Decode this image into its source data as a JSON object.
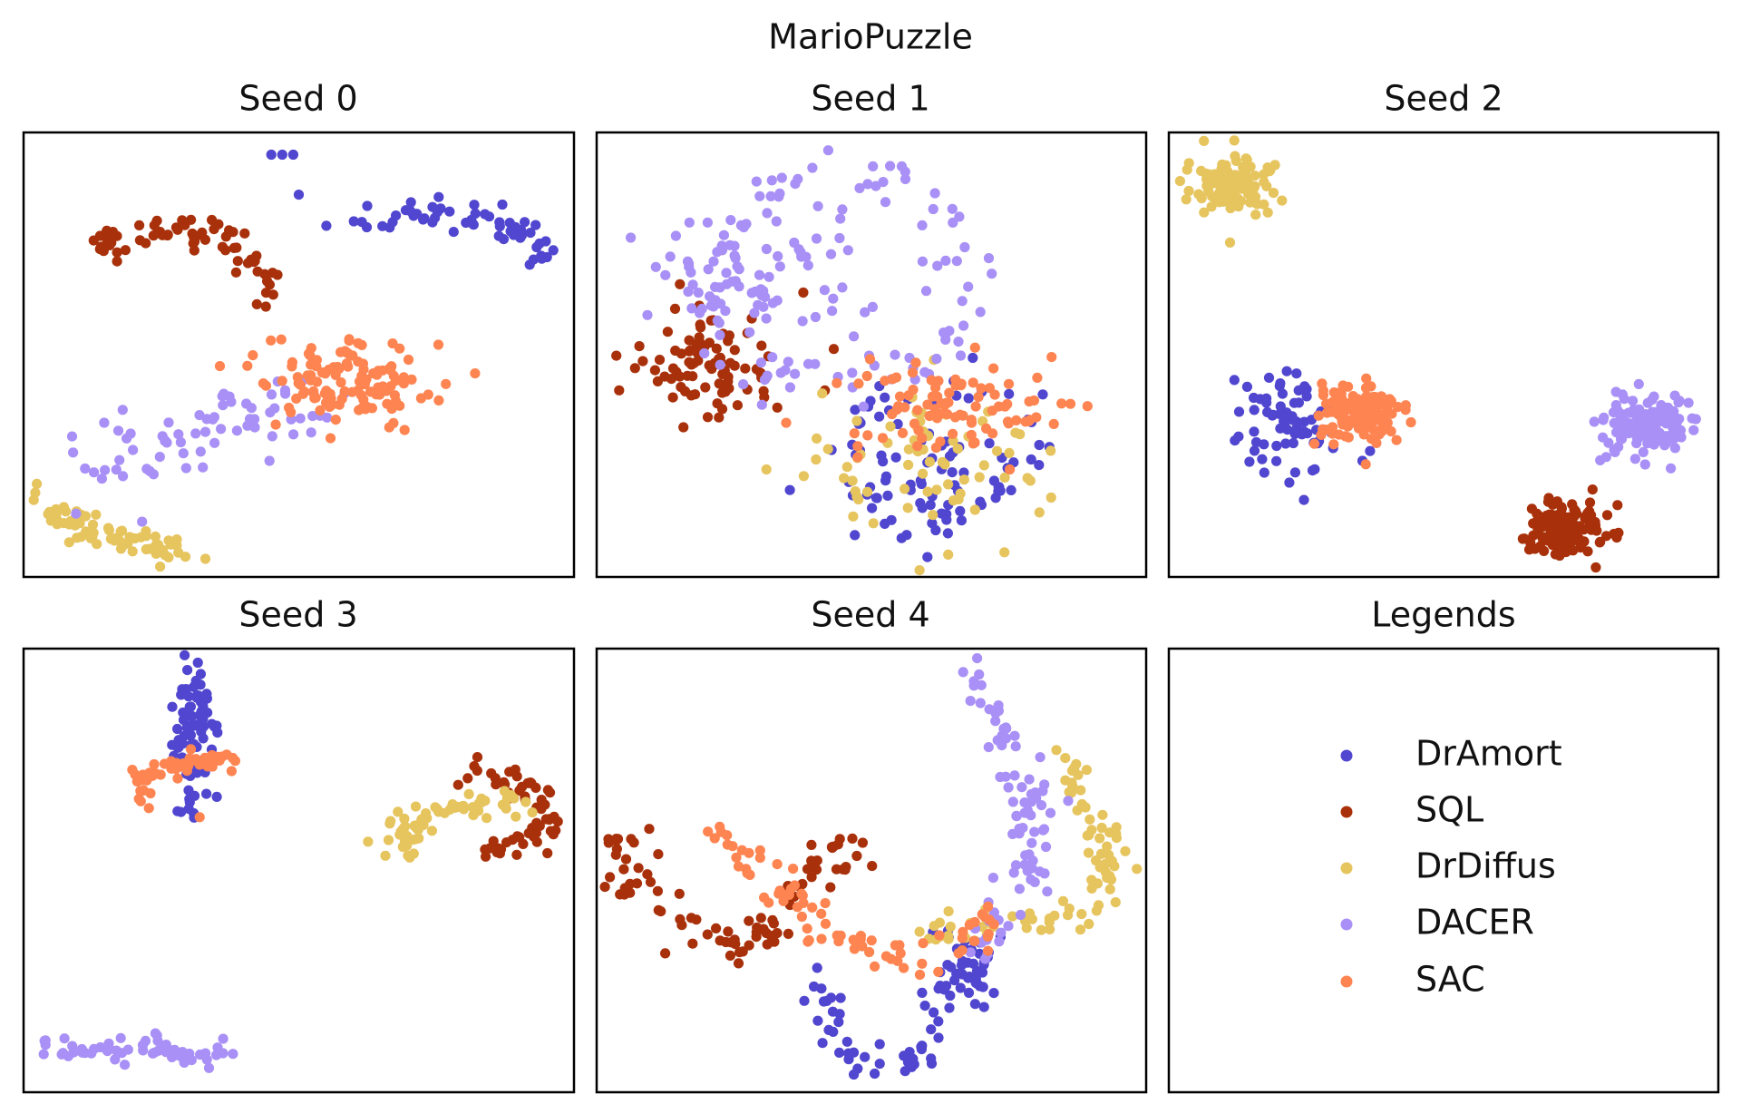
{
  "chart_data": {
    "type": "scatter",
    "title": "MarioPuzzle",
    "series_meta": [
      {
        "name": "DrAmort",
        "color": "#5046CF"
      },
      {
        "name": "SQL",
        "color": "#A8300A"
      },
      {
        "name": "DrDiffus",
        "color": "#E6C45E"
      },
      {
        "name": "DACER",
        "color": "#A890F6"
      },
      {
        "name": "SAC",
        "color": "#FE8451"
      }
    ],
    "legend": {
      "title": "Legends",
      "placement": "bottom-right panel"
    },
    "panels": [
      {
        "title": "Seed 0",
        "xlim": [
          0,
          100
        ],
        "ylim": [
          0,
          100
        ],
        "clusters": {
          "DrAmort": [
            {
              "pts": [
                [
                  45,
                  95
                ],
                [
                  47,
                  95
                ],
                [
                  49,
                  95
                ],
                [
                  50,
                  86
                ],
                [
                  55,
                  79
                ],
                [
                  60,
                  80
                ]
              ]
            },
            {
              "path": [
                [
                  62,
                  79
                ],
                [
                  70,
                  82
                ],
                [
                  78,
                  82
                ],
                [
                  86,
                  80
                ],
                [
                  92,
                  76
                ],
                [
                  95,
                  68
                ]
              ],
              "n": 55,
              "spread": 1.8
            }
          ],
          "SQL": [
            {
              "path": [
                [
                  13,
                  74
                ],
                [
                  22,
                  77
                ],
                [
                  32,
                  78
                ],
                [
                  40,
                  75
                ],
                [
                  44,
                  68
                ],
                [
                  45,
                  61
                ]
              ],
              "n": 70,
              "spread": 2.0
            }
          ],
          "SAC": [
            {
              "gauss": [
                58,
                44
              ],
              "sd": [
                9,
                4.5
              ],
              "n": 120
            }
          ],
          "DACER": [
            {
              "path": [
                [
                  14,
                  26
                ],
                [
                  24,
                  30
                ],
                [
                  34,
                  33
                ],
                [
                  44,
                  35
                ],
                [
                  54,
                  34
                ]
              ],
              "n": 70,
              "spread": 4.5
            }
          ],
          "DrDiffus": [
            {
              "path": [
                [
                  4,
                  18
                ],
                [
                  10,
                  11
                ],
                [
                  18,
                  8
                ],
                [
                  28,
                  6
                ]
              ],
              "n": 70,
              "spread": 1.8
            }
          ]
        }
      },
      {
        "title": "Seed 1",
        "xlim": [
          0,
          100
        ],
        "ylim": [
          0,
          100
        ],
        "clusters": {
          "DACER": [
            {
              "ring": [
                44,
                67
              ],
              "r": [
                22,
                24
              ],
              "n": 95,
              "jitter": 3
            },
            {
              "gauss": [
                30,
                68
              ],
              "sd": [
                10,
                9
              ],
              "n": 75
            }
          ],
          "SQL": [
            {
              "gauss": [
                21,
                47
              ],
              "sd": [
                7,
                6
              ],
              "n": 90
            }
          ],
          "DrAmort": [
            {
              "gauss": [
                62,
                23
              ],
              "sd": [
                8,
                6
              ],
              "n": 50
            },
            {
              "ring": [
                64,
                30
              ],
              "r": [
                16,
                14
              ],
              "n": 45,
              "jitter": 2.5
            }
          ],
          "DrDiffus": [
            {
              "gauss": [
                60,
                24
              ],
              "sd": [
                10,
                8
              ],
              "n": 70
            }
          ],
          "SAC": [
            {
              "gauss": [
                67,
                38
              ],
              "sd": [
                10,
                6
              ],
              "n": 90
            }
          ]
        }
      },
      {
        "title": "Seed 2",
        "xlim": [
          0,
          100
        ],
        "ylim": [
          0,
          100
        ],
        "clusters": {
          "DrDiffus": [
            {
              "gauss": [
                12,
                88
              ],
              "sd": [
                3.5,
                3.2
              ],
              "n": 120
            }
          ],
          "DrAmort": [
            {
              "gauss": [
                22,
                35
              ],
              "sd": [
                5,
                7
              ],
              "n": 75
            }
          ],
          "SAC": [
            {
              "gauss": [
                35,
                37
              ],
              "sd": [
                3.5,
                3.2
              ],
              "n": 130
            }
          ],
          "DACER": [
            {
              "gauss": [
                87,
                34
              ],
              "sd": [
                3.5,
                3.5
              ],
              "n": 150
            }
          ],
          "SQL": [
            {
              "gauss": [
                72,
                11
              ],
              "sd": [
                3.3,
                3.0
              ],
              "n": 140
            }
          ]
        }
      },
      {
        "title": "Seed 3",
        "xlim": [
          0,
          100
        ],
        "ylim": [
          0,
          100
        ],
        "clusters": {
          "DrAmort": [
            {
              "gauss": [
                31,
                81
              ],
              "sd": [
                2.2,
                8
              ],
              "n": 90
            }
          ],
          "SAC": [
            {
              "path": [
                [
                  21,
                  65
                ],
                [
                  22,
                  71
                ],
                [
                  28,
                  74
                ],
                [
                  34,
                  75
                ],
                [
                  37,
                  73
                ]
              ],
              "n": 55,
              "spread": 1.3
            },
            {
              "pts": [
                [
                  32,
                  62
                ]
              ]
            }
          ],
          "DrDiffus": [
            {
              "path": [
                [
                  67,
                  55
                ],
                [
                  74,
                  62
                ],
                [
                  82,
                  65
                ],
                [
                  90,
                  64
                ]
              ],
              "n": 65,
              "spread": 2.0
            }
          ],
          "SQL": [
            {
              "path": [
                [
                  83,
                  72
                ],
                [
                  90,
                  70
                ],
                [
                  95,
                  64
                ],
                [
                  92,
                  56
                ],
                [
                  84,
                  55
                ]
              ],
              "n": 60,
              "spread": 1.8
            }
          ],
          "DACER": [
            {
              "path": [
                [
                  4,
                  10
                ],
                [
                  15,
                  9
                ],
                [
                  25,
                  10
                ],
                [
                  32,
                  8
                ],
                [
                  40,
                  10
                ]
              ],
              "n": 60,
              "spread": 1.4
            }
          ]
        }
      },
      {
        "title": "Seed 4",
        "xlim": [
          0,
          100
        ],
        "ylim": [
          0,
          100
        ],
        "clusters": {
          "DACER": [
            {
              "path": [
                [
                  70,
                  95
                ],
                [
                  72,
                  85
                ],
                [
                  76,
                  77
                ],
                [
                  80,
                  68
                ],
                [
                  78,
                  58
                ],
                [
                  80,
                  48
                ],
                [
                  75,
                  40
                ],
                [
                  69,
                  32
                ]
              ],
              "n": 85,
              "spread": 2.3
            }
          ],
          "DrDiffus": [
            {
              "path": [
                [
                  86,
                  73
                ],
                [
                  90,
                  64
                ],
                [
                  94,
                  54
                ],
                [
                  91,
                  44
                ],
                [
                  85,
                  38
                ],
                [
                  76,
                  38
                ],
                [
                  66,
                  37
                ],
                [
                  60,
                  36
                ]
              ],
              "n": 85,
              "spread": 2.0
            }
          ],
          "SQL": [
            {
              "path": [
                [
                  5,
                  60
                ],
                [
                  6,
                  46
                ],
                [
                  14,
                  40
                ],
                [
                  26,
                  33
                ],
                [
                  34,
                  40
                ],
                [
                  38,
                  48
                ],
                [
                  44,
                  56
                ],
                [
                  48,
                  52
                ]
              ],
              "n": 90,
              "spread": 2.5
            }
          ],
          "SAC": [
            {
              "path": [
                [
                  22,
                  62
                ],
                [
                  30,
                  50
                ],
                [
                  38,
                  40
                ],
                [
                  48,
                  33
                ],
                [
                  58,
                  30
                ],
                [
                  66,
                  34
                ],
                [
                  72,
                  39
                ]
              ],
              "n": 80,
              "spread": 2.2
            }
          ],
          "DrAmort": [
            {
              "path": [
                [
                  42,
                  25
                ],
                [
                  43,
                  12
                ],
                [
                  52,
                  6
                ],
                [
                  60,
                  8
                ],
                [
                  62,
                  18
                ],
                [
                  66,
                  28
                ],
                [
                  70,
                  22
                ],
                [
                  68,
                  35
                ],
                [
                  64,
                  33
                ]
              ],
              "n": 90,
              "spread": 2.0
            }
          ]
        }
      }
    ]
  }
}
